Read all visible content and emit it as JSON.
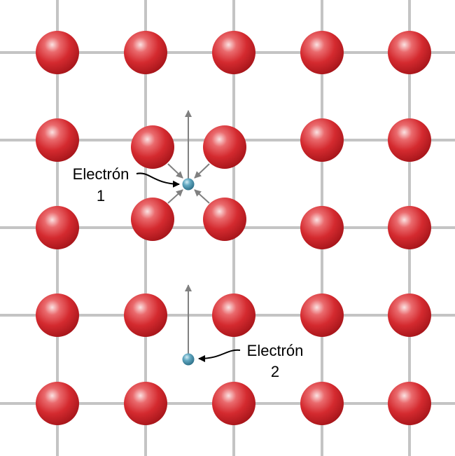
{
  "electron_1": {
    "label": "Electrón",
    "number": "1"
  },
  "electron_2": {
    "label": "Electrón",
    "number": "2"
  },
  "colors": {
    "ion": "#d42a2f",
    "ion_highlight": "#f7c9c9",
    "ion_shadow": "#9a1015",
    "electron": "#3e8aa6",
    "electron_highlight": "#b9dde9",
    "grid": "#c8c8c8",
    "arrow": "#808080",
    "text": "#000000"
  }
}
